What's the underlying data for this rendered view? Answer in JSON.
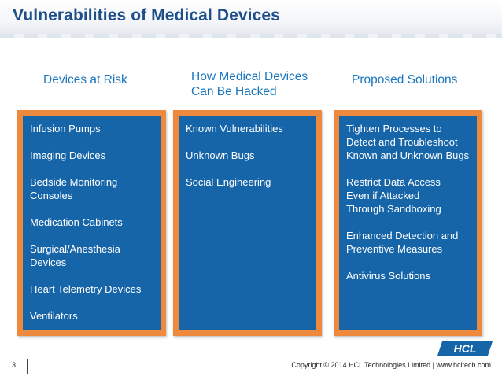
{
  "slide": {
    "title": "Vulnerabilities of Medical Devices",
    "page_number": "3",
    "copyright": "Copyright © 2014 HCL Technologies Limited | www.hcltech.com",
    "logo_text": "HCL"
  },
  "colors": {
    "title": "#1f4f8a",
    "heading": "#1a76be",
    "box_fill": "#1765a9",
    "box_border": "#ee8a3d"
  },
  "columns": [
    {
      "heading": "Devices at Risk",
      "items": [
        "Infusion Pumps",
        "Imaging Devices",
        "Bedside Monitoring Consoles",
        "Medication Cabinets",
        "Surgical/Anesthesia Devices",
        "Heart Telemetry Devices",
        "Ventilators"
      ]
    },
    {
      "heading": "How Medical Devices Can Be Hacked",
      "items": [
        "Known Vulnerabilities",
        "Unknown Bugs",
        "Social Engineering"
      ]
    },
    {
      "heading": "Proposed Solutions",
      "items": [
        "Tighten Processes to Detect and Troubleshoot Known and Unknown Bugs",
        "Restrict Data Access Even if Attacked Through Sandboxing",
        "Enhanced Detection and Preventive Measures",
        "Antivirus Solutions"
      ]
    }
  ]
}
